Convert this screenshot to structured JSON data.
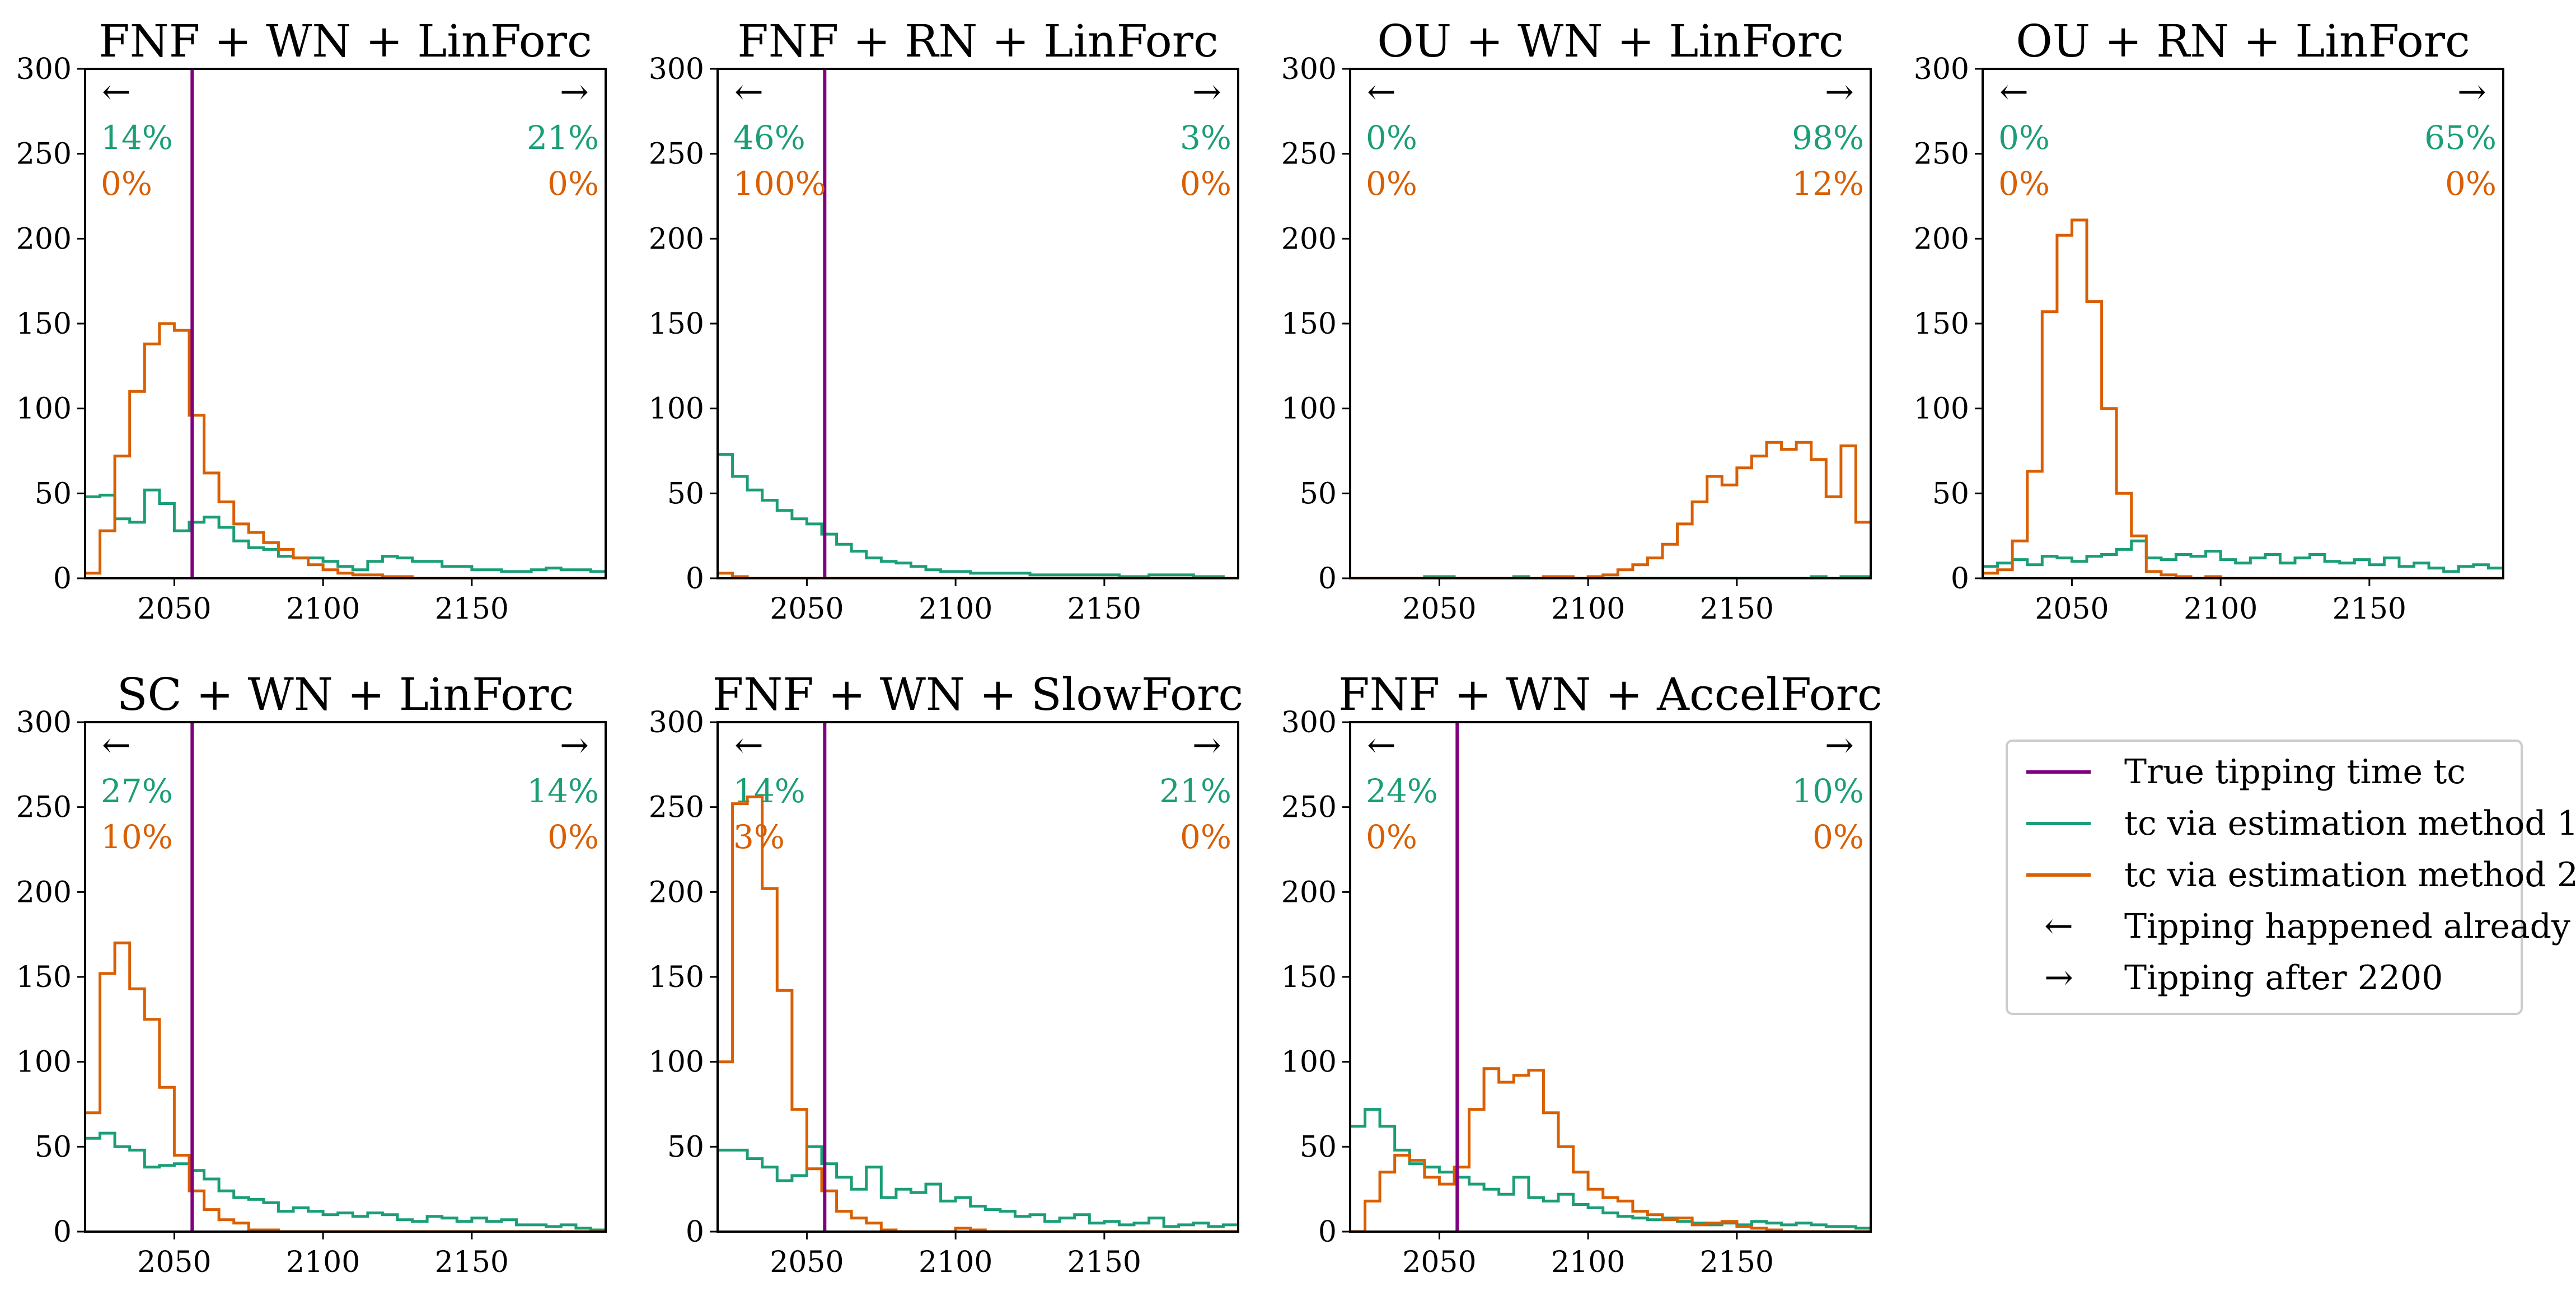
{
  "colors": {
    "truth": "#800080",
    "method1": "#1b9e77",
    "method2": "#d95f02",
    "axis": "#000000"
  },
  "arrows": {
    "left": "←",
    "right": "→"
  },
  "legend": {
    "entries": [
      {
        "key": "truth",
        "text": "True tipping time tc"
      },
      {
        "key": "method1",
        "text": "tc via estimation method 1"
      },
      {
        "key": "method2",
        "text": "tc via estimation method 2"
      },
      {
        "key": "left",
        "text": "Tipping happened already"
      },
      {
        "key": "right",
        "text": "Tipping after 2200"
      }
    ]
  },
  "chart_data": [
    {
      "type": "histogram",
      "title": "FNF + WN + LinForc",
      "xlim": [
        2020,
        2195
      ],
      "ylim": [
        0,
        300
      ],
      "xticks": [
        2050,
        2100,
        2150
      ],
      "yticks": [
        0,
        50,
        100,
        150,
        200,
        250,
        300
      ],
      "bin_start": 2020,
      "bin_width": 5,
      "true_tipping_time": 2056,
      "tipped_already": {
        "method1": "14%",
        "method2": "0%"
      },
      "tipping_after_2200": {
        "method1": "21%",
        "method2": "0%"
      },
      "series": [
        {
          "name": "tc via estimation method 1",
          "key": "method1",
          "values": [
            48,
            49,
            35,
            33,
            52,
            44,
            28,
            33,
            36,
            30,
            22,
            18,
            17,
            13,
            12,
            12,
            10,
            7,
            5,
            10,
            13,
            12,
            10,
            10,
            7,
            7,
            5,
            5,
            4,
            4,
            5,
            6,
            5,
            5,
            4
          ]
        },
        {
          "name": "tc via estimation method 2",
          "key": "method2",
          "values": [
            3,
            28,
            72,
            110,
            138,
            150,
            146,
            96,
            62,
            45,
            32,
            27,
            21,
            17,
            12,
            8,
            5,
            3,
            2,
            2,
            1,
            1,
            0,
            0,
            0,
            0,
            0,
            0,
            0,
            0,
            0,
            0,
            0,
            0,
            0
          ]
        }
      ]
    },
    {
      "type": "histogram",
      "title": "FNF + RN + LinForc",
      "xlim": [
        2020,
        2195
      ],
      "ylim": [
        0,
        300
      ],
      "xticks": [
        2050,
        2100,
        2150
      ],
      "yticks": [
        0,
        50,
        100,
        150,
        200,
        250,
        300
      ],
      "bin_start": 2020,
      "bin_width": 5,
      "true_tipping_time": 2056,
      "tipped_already": {
        "method1": "46%",
        "method2": "100%"
      },
      "tipping_after_2200": {
        "method1": "3%",
        "method2": "0%"
      },
      "series": [
        {
          "name": "tc via estimation method 1",
          "key": "method1",
          "values": [
            73,
            60,
            52,
            46,
            40,
            35,
            32,
            26,
            20,
            16,
            12,
            10,
            9,
            7,
            5,
            4,
            4,
            3,
            3,
            3,
            3,
            2,
            2,
            2,
            2,
            2,
            2,
            1,
            1,
            2,
            2,
            2,
            1,
            1,
            0
          ]
        },
        {
          "name": "tc via estimation method 2",
          "key": "method2",
          "values": [
            3,
            1,
            0,
            0,
            0,
            0,
            0,
            0,
            0,
            0,
            0,
            0,
            0,
            0,
            0,
            0,
            0,
            0,
            0,
            0,
            0,
            0,
            0,
            0,
            0,
            0,
            0,
            0,
            0,
            0,
            0,
            0,
            0,
            0,
            0
          ]
        }
      ]
    },
    {
      "type": "histogram",
      "title": "OU + WN + LinForc",
      "xlim": [
        2020,
        2195
      ],
      "ylim": [
        0,
        300
      ],
      "xticks": [
        2050,
        2100,
        2150
      ],
      "yticks": [
        0,
        50,
        100,
        150,
        200,
        250,
        300
      ],
      "bin_start": 2020,
      "bin_width": 5,
      "true_tipping_time": null,
      "tipped_already": {
        "method1": "0%",
        "method2": "0%"
      },
      "tipping_after_2200": {
        "method1": "98%",
        "method2": "12%"
      },
      "series": [
        {
          "name": "tc via estimation method 1",
          "key": "method1",
          "values": [
            0,
            0,
            0,
            0,
            0,
            1,
            1,
            0,
            0,
            0,
            0,
            1,
            0,
            1,
            0,
            0,
            0,
            0,
            0,
            0,
            0,
            0,
            0,
            0,
            0,
            0,
            0,
            0,
            0,
            0,
            0,
            1,
            0,
            1,
            1
          ]
        },
        {
          "name": "tc via estimation method 2",
          "key": "method2",
          "values": [
            0,
            0,
            0,
            0,
            0,
            0,
            0,
            0,
            0,
            0,
            0,
            0,
            0,
            1,
            1,
            0,
            1,
            2,
            5,
            8,
            12,
            20,
            32,
            45,
            60,
            55,
            65,
            72,
            80,
            76,
            80,
            70,
            48,
            78,
            33
          ]
        }
      ]
    },
    {
      "type": "histogram",
      "title": "OU + RN + LinForc",
      "xlim": [
        2020,
        2195
      ],
      "ylim": [
        0,
        300
      ],
      "xticks": [
        2050,
        2100,
        2150
      ],
      "yticks": [
        0,
        50,
        100,
        150,
        200,
        250,
        300
      ],
      "bin_start": 2020,
      "bin_width": 5,
      "true_tipping_time": null,
      "tipped_already": {
        "method1": "0%",
        "method2": "0%"
      },
      "tipping_after_2200": {
        "method1": "65%",
        "method2": "0%"
      },
      "series": [
        {
          "name": "tc via estimation method 1",
          "key": "method1",
          "values": [
            7,
            9,
            11,
            8,
            13,
            12,
            10,
            13,
            14,
            17,
            22,
            12,
            11,
            14,
            13,
            16,
            11,
            9,
            12,
            14,
            9,
            12,
            14,
            10,
            9,
            11,
            8,
            12,
            7,
            9,
            6,
            4,
            7,
            8,
            6
          ]
        },
        {
          "name": "tc via estimation method 2",
          "key": "method2",
          "values": [
            3,
            5,
            22,
            63,
            157,
            202,
            211,
            163,
            100,
            50,
            25,
            4,
            2,
            1,
            0,
            1,
            0,
            0,
            0,
            0,
            0,
            0,
            0,
            0,
            0,
            0,
            0,
            0,
            0,
            0,
            0,
            0,
            0,
            0,
            0
          ]
        }
      ]
    },
    {
      "type": "histogram",
      "title": "SC + WN + LinForc",
      "xlim": [
        2020,
        2195
      ],
      "ylim": [
        0,
        300
      ],
      "xticks": [
        2050,
        2100,
        2150
      ],
      "yticks": [
        0,
        50,
        100,
        150,
        200,
        250,
        300
      ],
      "bin_start": 2020,
      "bin_width": 5,
      "true_tipping_time": 2056,
      "tipped_already": {
        "method1": "27%",
        "method2": "10%"
      },
      "tipping_after_2200": {
        "method1": "14%",
        "method2": "0%"
      },
      "series": [
        {
          "name": "tc via estimation method 1",
          "key": "method1",
          "values": [
            55,
            58,
            50,
            48,
            38,
            39,
            40,
            36,
            31,
            24,
            20,
            19,
            17,
            12,
            14,
            12,
            10,
            11,
            9,
            11,
            10,
            7,
            6,
            9,
            8,
            6,
            8,
            6,
            7,
            4,
            4,
            3,
            4,
            2,
            1
          ]
        },
        {
          "name": "tc via estimation method 2",
          "key": "method2",
          "values": [
            70,
            152,
            170,
            143,
            125,
            85,
            45,
            24,
            13,
            7,
            5,
            1,
            1,
            0,
            0,
            0,
            0,
            0,
            0,
            0,
            0,
            0,
            0,
            0,
            0,
            0,
            0,
            0,
            0,
            0,
            0,
            0,
            0,
            0,
            0
          ]
        }
      ]
    },
    {
      "type": "histogram",
      "title": "FNF + WN + SlowForc",
      "xlim": [
        2020,
        2195
      ],
      "ylim": [
        0,
        300
      ],
      "xticks": [
        2050,
        2100,
        2150
      ],
      "yticks": [
        0,
        50,
        100,
        150,
        200,
        250,
        300
      ],
      "bin_start": 2020,
      "bin_width": 5,
      "true_tipping_time": 2056,
      "tipped_already": {
        "method1": "14%",
        "method2": "3%"
      },
      "tipping_after_2200": {
        "method1": "21%",
        "method2": "0%"
      },
      "series": [
        {
          "name": "tc via estimation method 1",
          "key": "method1",
          "values": [
            48,
            48,
            43,
            38,
            30,
            33,
            50,
            40,
            32,
            25,
            38,
            20,
            25,
            23,
            28,
            18,
            20,
            15,
            13,
            12,
            9,
            10,
            6,
            8,
            10,
            5,
            6,
            4,
            5,
            8,
            3,
            4,
            5,
            3,
            4
          ]
        },
        {
          "name": "tc via estimation method 2",
          "key": "method2",
          "values": [
            100,
            252,
            256,
            202,
            142,
            72,
            37,
            24,
            12,
            8,
            5,
            1,
            0,
            0,
            0,
            0,
            2,
            1,
            0,
            0,
            0,
            0,
            0,
            0,
            0,
            0,
            0,
            0,
            0,
            0,
            0,
            0,
            0,
            0,
            0
          ]
        }
      ]
    },
    {
      "type": "histogram",
      "title": "FNF + WN + AccelForc",
      "xlim": [
        2020,
        2195
      ],
      "ylim": [
        0,
        300
      ],
      "xticks": [
        2050,
        2100,
        2150
      ],
      "yticks": [
        0,
        50,
        100,
        150,
        200,
        250,
        300
      ],
      "bin_start": 2020,
      "bin_width": 5,
      "true_tipping_time": 2056,
      "tipped_already": {
        "method1": "24%",
        "method2": "0%"
      },
      "tipping_after_2200": {
        "method1": "10%",
        "method2": "0%"
      },
      "series": [
        {
          "name": "tc via estimation method 1",
          "key": "method1",
          "values": [
            62,
            72,
            62,
            48,
            40,
            38,
            35,
            32,
            28,
            25,
            22,
            32,
            20,
            18,
            22,
            16,
            14,
            11,
            9,
            8,
            7,
            8,
            6,
            5,
            4,
            5,
            4,
            6,
            5,
            4,
            5,
            4,
            3,
            3,
            2
          ]
        },
        {
          "name": "tc via estimation method 2",
          "key": "method2",
          "values": [
            0,
            18,
            35,
            45,
            42,
            32,
            28,
            38,
            72,
            96,
            88,
            92,
            95,
            70,
            50,
            35,
            25,
            20,
            18,
            12,
            10,
            7,
            8,
            4,
            5,
            6,
            3,
            2,
            1,
            0,
            0,
            0,
            0,
            0,
            0
          ]
        }
      ]
    }
  ]
}
